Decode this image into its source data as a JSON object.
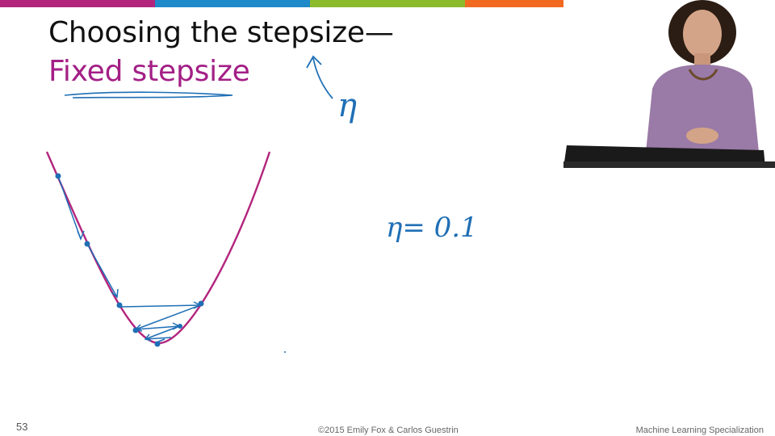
{
  "colors": {
    "bar": [
      "#b3247d",
      "#1f8ac9",
      "#8cbb2c",
      "#f26a21",
      "#6b6b6b"
    ],
    "title_primary": "#111111",
    "title_accent": "#a31f86",
    "ink": "#1f6fb5",
    "curve": "#b3247d"
  },
  "slide": {
    "title": "Choosing the stepsize—",
    "subtitle": "Fixed stepsize",
    "annotation_eta": "η",
    "annotation_eq": "η= 0.1",
    "page_number": "53",
    "copyright": "©2015 Emily Fox & Carlos Guestrin",
    "course": "Machine Learning Specialization"
  },
  "webcam": {
    "icon": "presenter-video"
  }
}
